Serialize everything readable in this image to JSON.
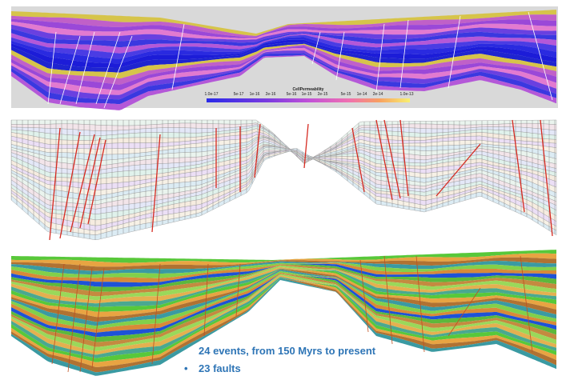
{
  "colorbar": {
    "title": "CellPermeability",
    "ticks": [
      "1.0e-17",
      "5e-17",
      "1e-16",
      "2e-16",
      "5e-16",
      "1e-15",
      "2e-15",
      "5e-15",
      "1e-14",
      "2e-14",
      "1.0e-13"
    ]
  },
  "caption": {
    "line1": "24 events, from 150 Myrs to present",
    "bullet": "•",
    "line2": "23 faults"
  }
}
